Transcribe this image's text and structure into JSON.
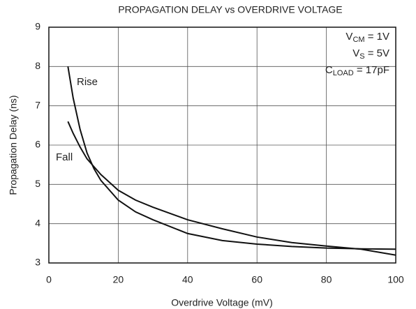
{
  "chart_data": {
    "type": "line",
    "title": "PROPAGATION DELAY vs OVERDRIVE VOLTAGE",
    "x_label": "Overdrive Voltage (mV)",
    "y_label": "Propagation Delay (ns)",
    "x": [
      5.5,
      7,
      9,
      11,
      13,
      15,
      20,
      25,
      30,
      40,
      50,
      60,
      70,
      80,
      90,
      100
    ],
    "series": [
      {
        "name": "Rise",
        "color": "#111111",
        "values": [
          8.0,
          7.2,
          6.4,
          5.8,
          5.4,
          5.1,
          4.6,
          4.3,
          4.1,
          3.75,
          3.57,
          3.48,
          3.42,
          3.38,
          3.36,
          3.35
        ]
      },
      {
        "name": "Fall",
        "color": "#111111",
        "values": [
          6.6,
          6.3,
          5.95,
          5.65,
          5.45,
          5.25,
          4.85,
          4.6,
          4.42,
          4.1,
          3.87,
          3.66,
          3.52,
          3.43,
          3.35,
          3.2
        ]
      }
    ],
    "conditions": [
      {
        "text": "V",
        "sub": "CM",
        "rest": " = 1V"
      },
      {
        "text": "V",
        "sub": "S",
        "rest": " = 5V"
      },
      {
        "text": "C",
        "sub": "LOAD",
        "rest": " = 17pF"
      }
    ],
    "xlim": [
      0,
      100
    ],
    "xticks": [
      0,
      20,
      40,
      60,
      80,
      100
    ],
    "ylim": [
      3,
      9
    ],
    "yticks": [
      3,
      4,
      5,
      6,
      7,
      8,
      9
    ],
    "grid": true
  }
}
